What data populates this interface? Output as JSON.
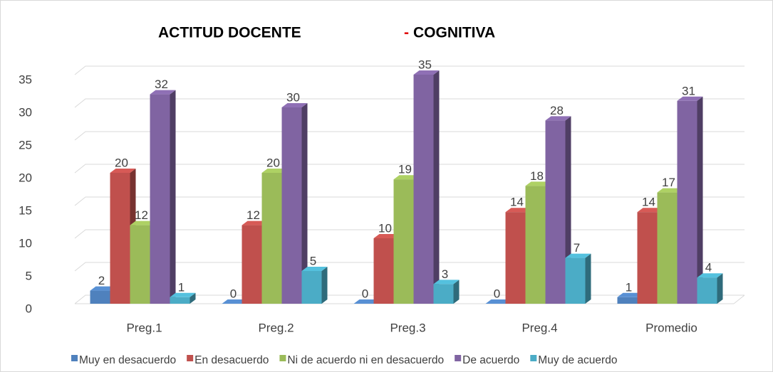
{
  "chart_data": {
    "type": "bar3d",
    "title": [
      "ACTITUD DOCENTE",
      "-",
      "COGNITIVA"
    ],
    "categories": [
      "Preg.1",
      "Preg.2",
      "Preg.3",
      "Preg.4",
      "Promedio"
    ],
    "series": [
      {
        "name": "Muy en desacuerdo",
        "color": "#4f81bd",
        "values": [
          2,
          0,
          0,
          0,
          1
        ]
      },
      {
        "name": "En desacuerdo",
        "color": "#c0504d",
        "values": [
          20,
          12,
          10,
          14,
          14
        ]
      },
      {
        "name": "Ni de acuerdo ni en desacuerdo",
        "color": "#9bbb59",
        "values": [
          12,
          20,
          19,
          18,
          17
        ]
      },
      {
        "name": "De acuerdo",
        "color": "#8064a2",
        "values": [
          32,
          30,
          35,
          28,
          31
        ]
      },
      {
        "name": "Muy de acuerdo",
        "color": "#4bacc6",
        "values": [
          1,
          5,
          3,
          7,
          4
        ]
      }
    ],
    "ylim": [
      0,
      35
    ],
    "yticks": [
      0,
      5,
      10,
      15,
      20,
      25,
      30,
      35
    ],
    "grid": true,
    "legend": "bottom"
  }
}
